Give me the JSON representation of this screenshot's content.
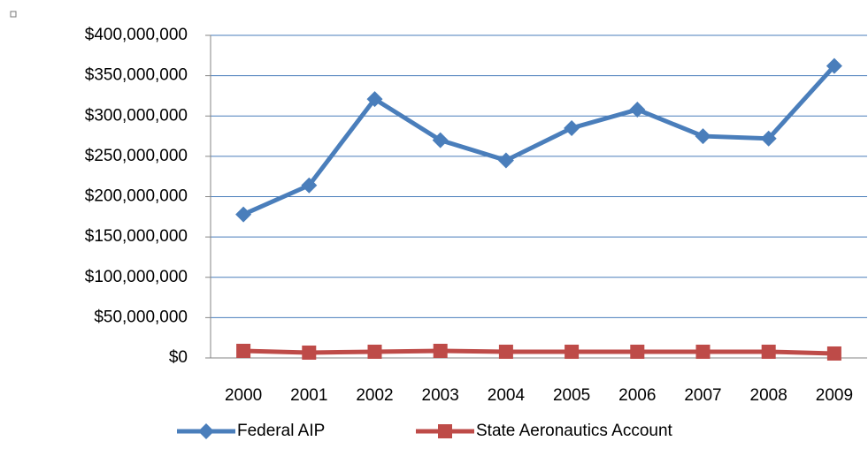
{
  "chart_data": {
    "type": "line",
    "categories": [
      "2000",
      "2001",
      "2002",
      "2003",
      "2004",
      "2005",
      "2006",
      "2007",
      "2008",
      "2009"
    ],
    "series": [
      {
        "name": "Federal AIP",
        "color": "#4a7ebb",
        "marker": "diamond",
        "values": [
          178000000,
          214000000,
          321000000,
          270000000,
          245000000,
          285000000,
          308000000,
          275000000,
          272000000,
          362000000
        ]
      },
      {
        "name": "State Aeronautics Account",
        "color": "#be4b48",
        "marker": "square",
        "values": [
          8800000,
          6600000,
          7700000,
          8800000,
          7700000,
          7700000,
          7700000,
          7700000,
          7700000,
          5500000
        ]
      }
    ],
    "ylim": [
      0,
      400000000
    ],
    "yticks": [
      {
        "value": 0,
        "label": "$0"
      },
      {
        "value": 50000000,
        "label": "$50,000,000"
      },
      {
        "value": 100000000,
        "label": "$100,000,000"
      },
      {
        "value": 150000000,
        "label": "$150,000,000"
      },
      {
        "value": 200000000,
        "label": "$200,000,000"
      },
      {
        "value": 250000000,
        "label": "$250,000,000"
      },
      {
        "value": 300000000,
        "label": "$300,000,000"
      },
      {
        "value": 350000000,
        "label": "$350,000,000"
      },
      {
        "value": 400000000,
        "label": "$400,000,000"
      }
    ],
    "grid": true,
    "legend": "bottom"
  }
}
